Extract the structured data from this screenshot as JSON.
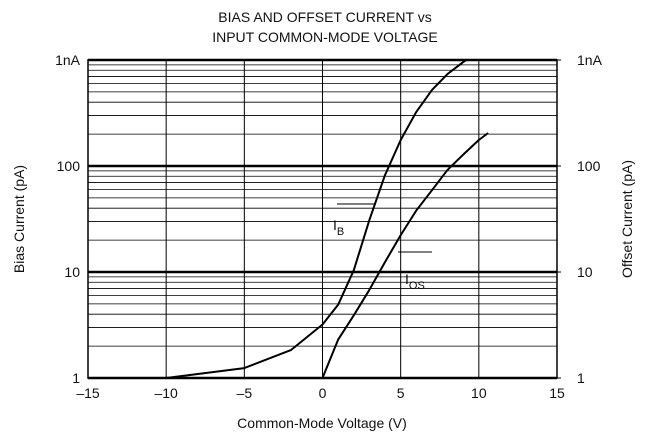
{
  "chart_data": {
    "type": "line",
    "title": [
      "BIAS AND OFFSET CURRENT vs",
      "INPUT COMMON-MODE VOLTAGE"
    ],
    "xlabel": "Common-Mode Voltage (V)",
    "ylabel": "Bias Current (pA)",
    "y2label": "Offset Current (pA)",
    "xlim": [
      -15,
      15
    ],
    "xticks": [
      {
        "value": -15,
        "label": "–15"
      },
      {
        "value": -10,
        "label": "–10"
      },
      {
        "value": -5,
        "label": "–5"
      },
      0,
      5,
      10,
      15
    ],
    "ylim": [
      1,
      1000
    ],
    "log_y": true,
    "yticks": [
      1,
      10,
      100,
      {
        "value": 1000,
        "label": "1nA"
      }
    ],
    "y2lim": [
      1,
      1000
    ],
    "y2ticks": [
      1,
      10,
      100,
      {
        "value": 1000,
        "label": "1nA"
      }
    ],
    "grid": true,
    "series": [
      {
        "name": "IB",
        "color": "#000000",
        "x": [
          -10,
          -5,
          -2,
          0,
          1,
          2,
          3,
          4,
          5,
          6,
          7,
          8,
          9,
          9.2
        ],
        "values": [
          1,
          1.24,
          1.84,
          3.2,
          4.9,
          10.4,
          31,
          82,
          176,
          324,
          520,
          740,
          955,
          1000
        ]
      },
      {
        "name": "IOS",
        "color": "#000000",
        "axis": "y2",
        "x": [
          0,
          1,
          2,
          3,
          4,
          5,
          6,
          7,
          8,
          9,
          10,
          10.6
        ],
        "values": [
          1,
          2.3,
          3.9,
          6.8,
          12.4,
          22.3,
          38,
          59,
          92,
          128,
          176,
          205
        ]
      }
    ],
    "annotations": [
      {
        "text": "I",
        "sub": "B"
      },
      {
        "text": "I",
        "sub": "OS"
      }
    ]
  }
}
